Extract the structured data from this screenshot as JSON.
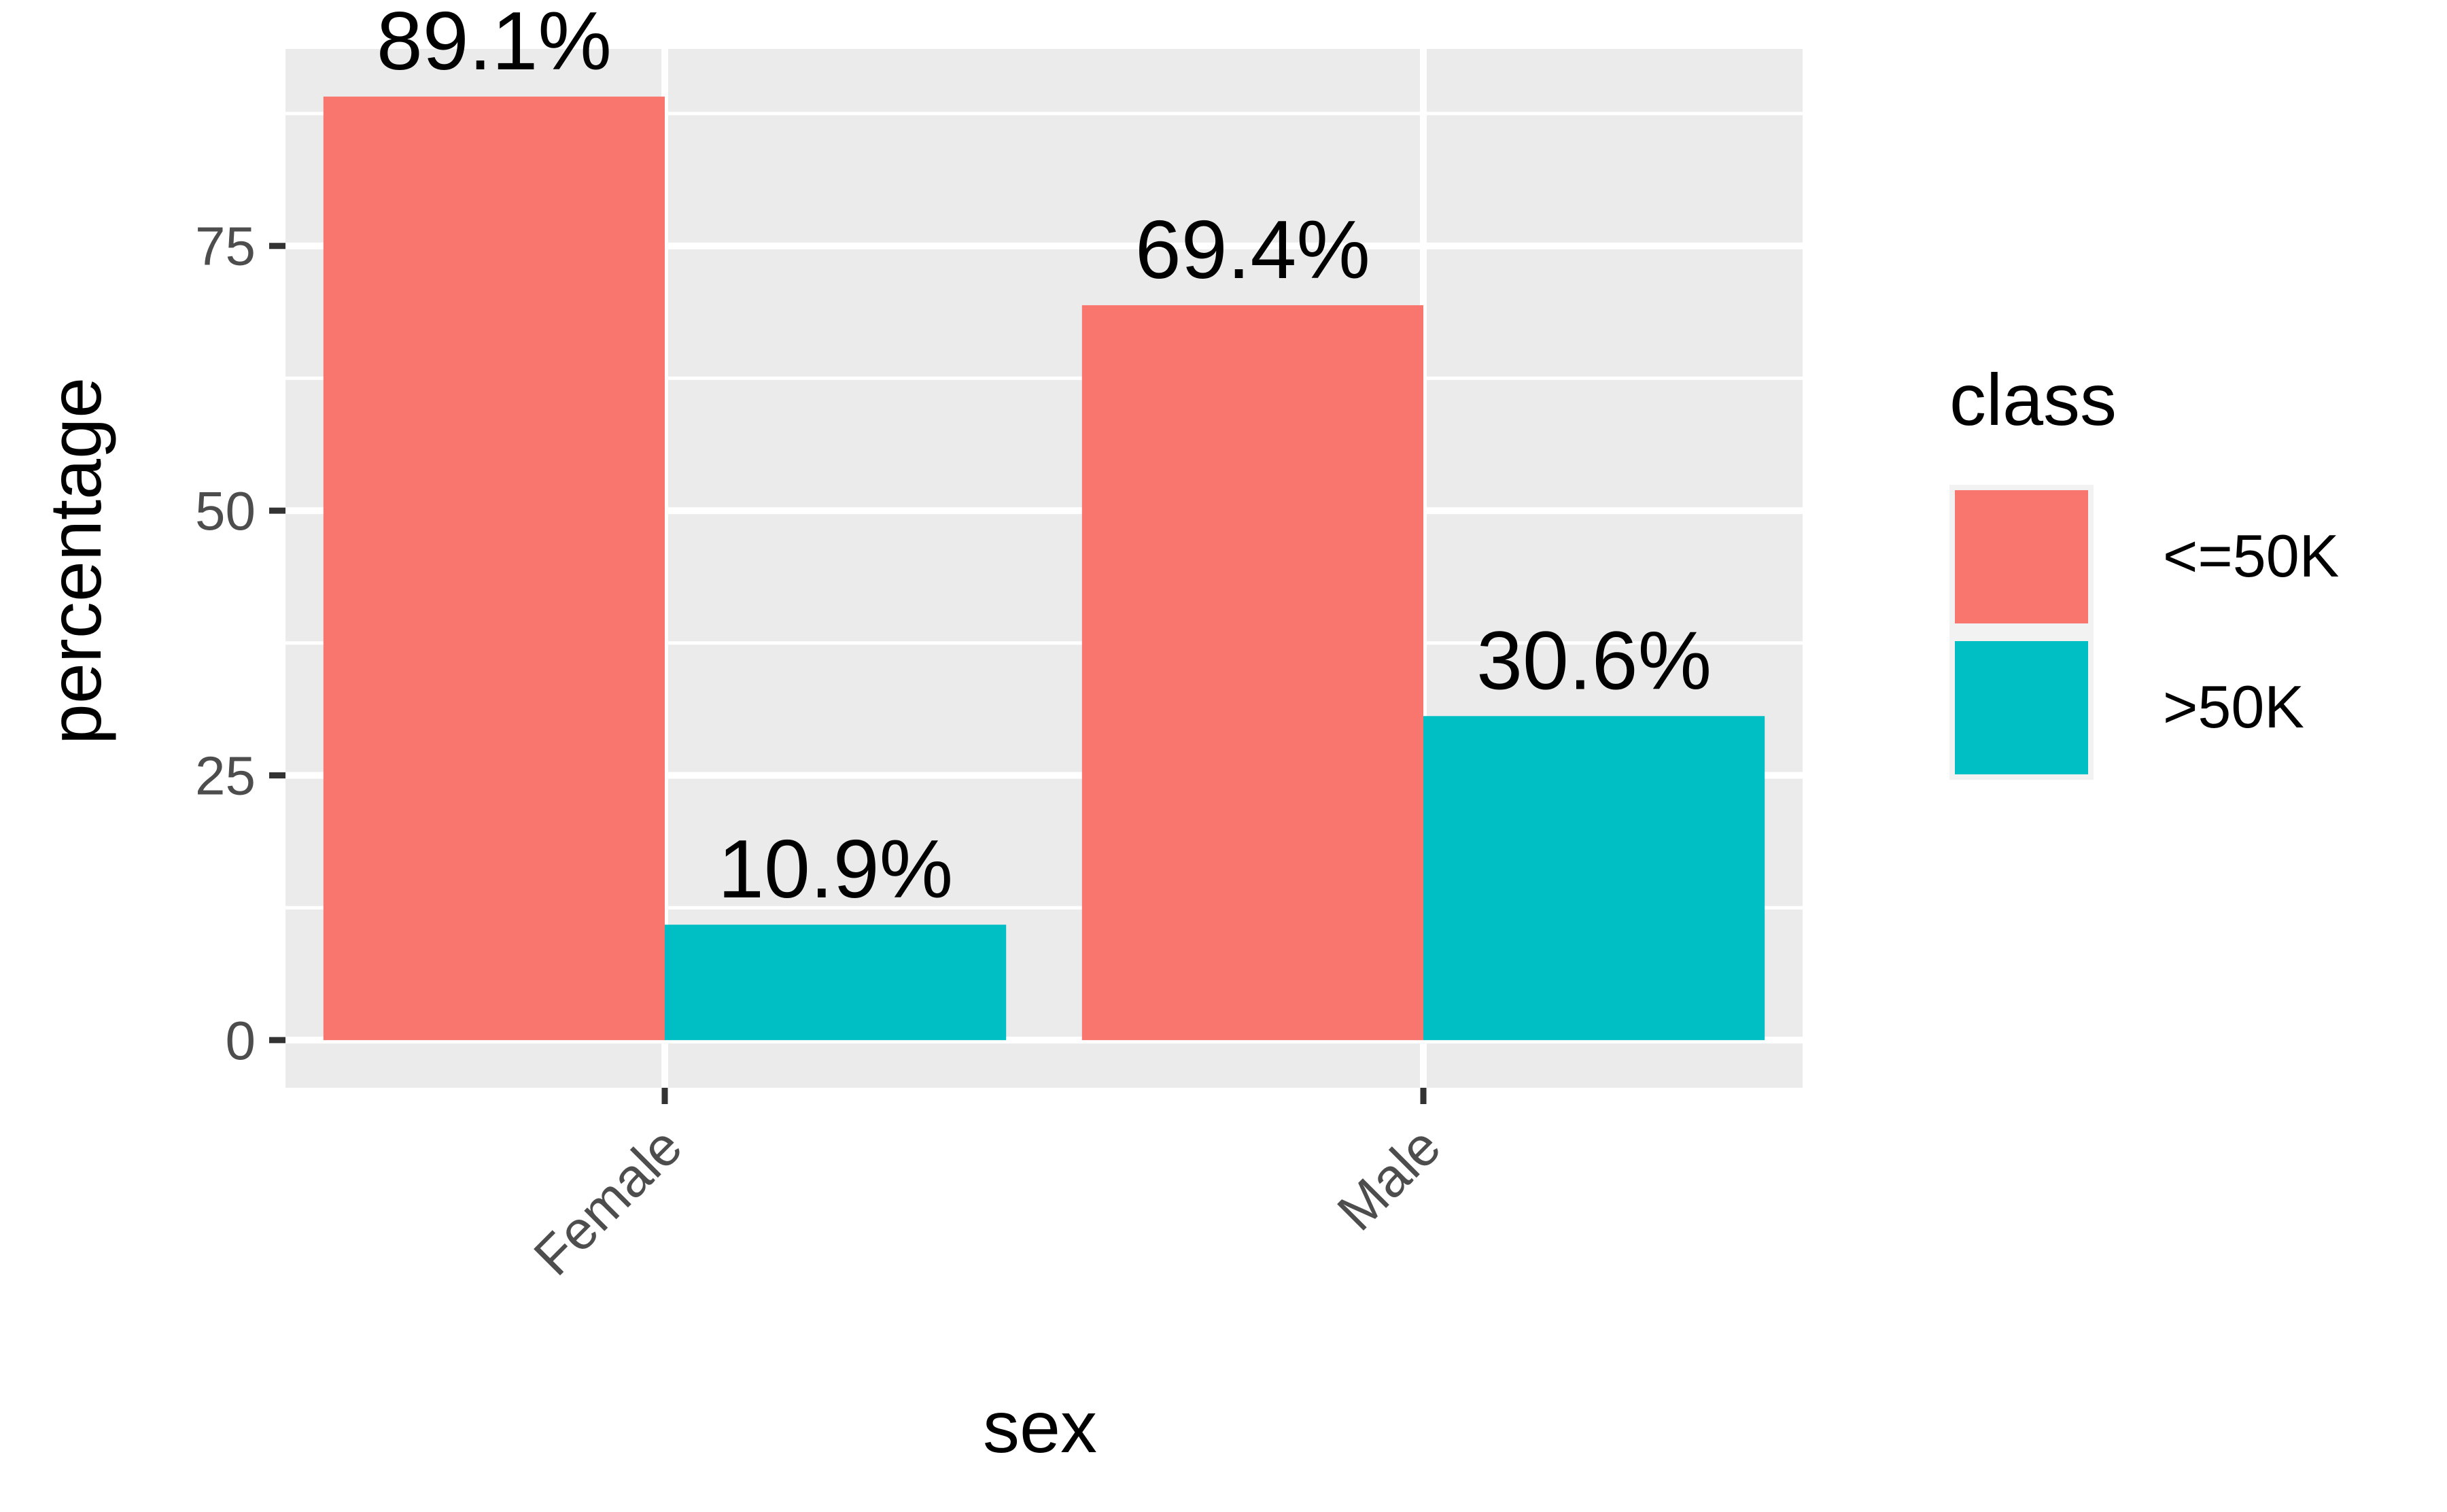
{
  "chart_data": {
    "type": "bar",
    "categories": [
      "Female",
      "Male"
    ],
    "series": [
      {
        "name": "<=50K",
        "values": [
          89.1,
          69.4
        ],
        "labels": [
          "89.1%",
          "69.4%"
        ],
        "color": "#F8766D"
      },
      {
        "name": ">50K",
        "values": [
          10.9,
          30.6
        ],
        "labels": [
          "10.9%",
          "30.6%"
        ],
        "color": "#00BFC4"
      }
    ],
    "xlabel": "sex",
    "ylabel": "percentage",
    "yticks": [
      0,
      25,
      50,
      75
    ],
    "ylim": [
      -4.5,
      93.6
    ],
    "legend": {
      "title": "class",
      "position": "right"
    },
    "grid": true,
    "panel_background": "#EBEBEB",
    "gridline_color": "#FFFFFF"
  }
}
